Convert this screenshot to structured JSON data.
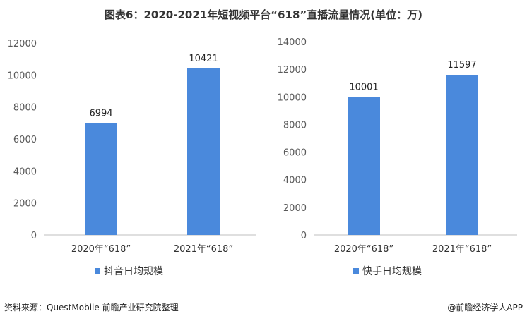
{
  "title": "图表6：2020-2021年短视频平台“618”直播流量情况(单位：万)",
  "footer": {
    "source": "资料来源：QuestMobile 前瞻产业研究院整理",
    "brand": "@前瞻经济学人APP"
  },
  "colors": {
    "bar": "#4a89dc",
    "axis": "#bfbfbf"
  },
  "chart_data": [
    {
      "type": "bar",
      "categories": [
        "2020年“618”",
        "2021年“618”"
      ],
      "series": [
        {
          "name": "抖音日均规模",
          "values": [
            6994,
            10421
          ]
        }
      ],
      "ylim": [
        0,
        12000
      ],
      "yticks": [
        0,
        2000,
        4000,
        6000,
        8000,
        10000,
        12000
      ],
      "grid": false,
      "legend": "bottom"
    },
    {
      "type": "bar",
      "categories": [
        "2020年“618”",
        "2021年“618”"
      ],
      "series": [
        {
          "name": "快手日均规模",
          "values": [
            10001,
            11597
          ]
        }
      ],
      "ylim": [
        0,
        14000
      ],
      "yticks": [
        0,
        2000,
        4000,
        6000,
        8000,
        10000,
        12000,
        14000
      ],
      "grid": false,
      "legend": "bottom"
    }
  ]
}
